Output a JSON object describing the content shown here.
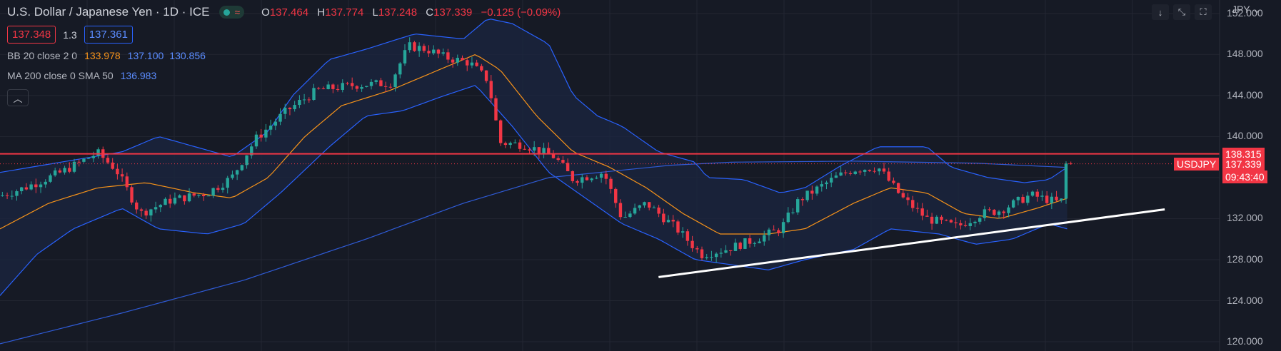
{
  "header": {
    "title": "U.S. Dollar / Japanese Yen · 1D · ICE",
    "ohlc": [
      {
        "k": "O",
        "v": "137.464"
      },
      {
        "k": "H",
        "v": "137.774"
      },
      {
        "k": "L",
        "v": "137.248"
      },
      {
        "k": "C",
        "v": "137.339"
      },
      {
        "k": "",
        "v": "−0.125 (−0.09%)"
      }
    ],
    "sell_price": "137.348",
    "spread": "1.3",
    "buy_price": "137.361",
    "currency": "JPY",
    "icons": [
      "arrow-down-icon",
      "collapse-arrows-icon",
      "fullscreen-icon"
    ]
  },
  "indicators": {
    "bb": {
      "name": "BB 20 close 2 0",
      "basis": "133.978",
      "upper": "137.100",
      "lower": "130.856"
    },
    "ma": {
      "name": "MA 200 close 0 SMA 50",
      "value": "136.983"
    }
  },
  "labels": {
    "resistance": "138.315",
    "symbol": "USDJPY",
    "last_price": "137.339",
    "countdown": "09:43:40"
  },
  "colors": {
    "bg": "#161a25",
    "grid": "#232632",
    "up": "#26a69a",
    "down": "#f23645",
    "bb_line": "#2962ff",
    "bb_fill": "#1b2540",
    "basis": "#f7931a",
    "ma": "#2f5bd6",
    "resistance": "#f23645",
    "trend": "#ffffff"
  },
  "chart_data": {
    "type": "candlestick",
    "y_ticks": [
      "152.000",
      "148.000",
      "144.000",
      "140.000",
      "136.000",
      "132.000",
      "128.000",
      "124.000",
      "120.000"
    ],
    "ylim": [
      119.1,
      153.3
    ],
    "resistance_level": 138.315,
    "last_price": 137.339,
    "trendline": {
      "from": [
        0.54,
        126.3
      ],
      "to": [
        0.955,
        132.9
      ]
    },
    "anchors": [
      [
        0,
        134.2
      ],
      [
        0.02,
        135.0
      ],
      [
        0.05,
        136.5
      ],
      [
        0.08,
        138.4
      ],
      [
        0.095,
        136.8
      ],
      [
        0.115,
        132.5
      ],
      [
        0.14,
        133.8
      ],
      [
        0.17,
        134.5
      ],
      [
        0.19,
        136.0
      ],
      [
        0.21,
        139.8
      ],
      [
        0.235,
        142.5
      ],
      [
        0.26,
        144.5
      ],
      [
        0.29,
        145.0
      ],
      [
        0.32,
        145.2
      ],
      [
        0.335,
        148.8
      ],
      [
        0.35,
        148.5
      ],
      [
        0.365,
        147.7
      ],
      [
        0.385,
        147.2
      ],
      [
        0.4,
        145.5
      ],
      [
        0.41,
        139.4
      ],
      [
        0.43,
        139.2
      ],
      [
        0.455,
        138.0
      ],
      [
        0.47,
        135.8
      ],
      [
        0.495,
        136.5
      ],
      [
        0.51,
        132.0
      ],
      [
        0.53,
        133.5
      ],
      [
        0.555,
        131.0
      ],
      [
        0.575,
        128.5
      ],
      [
        0.595,
        129.0
      ],
      [
        0.62,
        130.0
      ],
      [
        0.64,
        131.0
      ],
      [
        0.655,
        133.8
      ],
      [
        0.685,
        136.0
      ],
      [
        0.7,
        136.8
      ],
      [
        0.72,
        137.0
      ],
      [
        0.74,
        134.0
      ],
      [
        0.76,
        132.0
      ],
      [
        0.785,
        131.2
      ],
      [
        0.805,
        132.5
      ],
      [
        0.82,
        132.8
      ],
      [
        0.845,
        134.3
      ],
      [
        0.87,
        133.5
      ],
      [
        0.873,
        137.3
      ],
      [
        0.88,
        137.339
      ]
    ],
    "bb_upper_anchors": [
      [
        0,
        136.5
      ],
      [
        0.05,
        137.5
      ],
      [
        0.1,
        138.5
      ],
      [
        0.13,
        140.0
      ],
      [
        0.16,
        139.0
      ],
      [
        0.19,
        138.0
      ],
      [
        0.22,
        140.5
      ],
      [
        0.24,
        144.0
      ],
      [
        0.27,
        147.5
      ],
      [
        0.3,
        148.5
      ],
      [
        0.34,
        150.0
      ],
      [
        0.38,
        149.5
      ],
      [
        0.4,
        151.5
      ],
      [
        0.42,
        151.0
      ],
      [
        0.45,
        149.0
      ],
      [
        0.47,
        144.0
      ],
      [
        0.49,
        142.0
      ],
      [
        0.51,
        141.0
      ],
      [
        0.54,
        138.5
      ],
      [
        0.57,
        137.5
      ],
      [
        0.58,
        136.0
      ],
      [
        0.61,
        135.8
      ],
      [
        0.64,
        134.5
      ],
      [
        0.66,
        135.0
      ],
      [
        0.69,
        137.2
      ],
      [
        0.72,
        139.0
      ],
      [
        0.76,
        139.0
      ],
      [
        0.78,
        137.0
      ],
      [
        0.81,
        136.0
      ],
      [
        0.84,
        135.5
      ],
      [
        0.86,
        135.8
      ],
      [
        0.875,
        137.0
      ]
    ],
    "bb_lower_anchors": [
      [
        0,
        124.5
      ],
      [
        0.03,
        128.5
      ],
      [
        0.06,
        131.0
      ],
      [
        0.1,
        133.0
      ],
      [
        0.13,
        131.0
      ],
      [
        0.17,
        130.5
      ],
      [
        0.2,
        131.5
      ],
      [
        0.23,
        134.5
      ],
      [
        0.27,
        139.0
      ],
      [
        0.3,
        142.0
      ],
      [
        0.33,
        142.5
      ],
      [
        0.36,
        143.8
      ],
      [
        0.39,
        145.0
      ],
      [
        0.42,
        141.0
      ],
      [
        0.45,
        136.5
      ],
      [
        0.48,
        134.0
      ],
      [
        0.51,
        131.5
      ],
      [
        0.54,
        130.0
      ],
      [
        0.57,
        128.0
      ],
      [
        0.6,
        127.5
      ],
      [
        0.63,
        127.0
      ],
      [
        0.66,
        128.0
      ],
      [
        0.7,
        129.0
      ],
      [
        0.73,
        131.0
      ],
      [
        0.77,
        130.5
      ],
      [
        0.8,
        129.5
      ],
      [
        0.83,
        130.0
      ],
      [
        0.86,
        131.5
      ],
      [
        0.875,
        131.0
      ]
    ],
    "basis_anchors": [
      [
        0,
        131.0
      ],
      [
        0.04,
        133.5
      ],
      [
        0.08,
        135.0
      ],
      [
        0.12,
        135.5
      ],
      [
        0.16,
        134.5
      ],
      [
        0.19,
        134.0
      ],
      [
        0.22,
        136.0
      ],
      [
        0.25,
        140.0
      ],
      [
        0.28,
        143.0
      ],
      [
        0.32,
        144.5
      ],
      [
        0.36,
        146.5
      ],
      [
        0.39,
        148.0
      ],
      [
        0.41,
        146.5
      ],
      [
        0.44,
        142.0
      ],
      [
        0.47,
        138.5
      ],
      [
        0.5,
        137.0
      ],
      [
        0.53,
        135.0
      ],
      [
        0.56,
        132.5
      ],
      [
        0.59,
        130.5
      ],
      [
        0.63,
        130.5
      ],
      [
        0.66,
        131.0
      ],
      [
        0.7,
        133.5
      ],
      [
        0.73,
        135.0
      ],
      [
        0.76,
        134.5
      ],
      [
        0.79,
        132.5
      ],
      [
        0.82,
        132.0
      ],
      [
        0.85,
        133.0
      ],
      [
        0.875,
        133.978
      ]
    ],
    "ma_anchors": [
      [
        0,
        119.8
      ],
      [
        0.1,
        122.8
      ],
      [
        0.2,
        126.0
      ],
      [
        0.3,
        130.0
      ],
      [
        0.38,
        133.5
      ],
      [
        0.45,
        136.0
      ],
      [
        0.5,
        136.6
      ],
      [
        0.55,
        137.2
      ],
      [
        0.6,
        137.5
      ],
      [
        0.7,
        137.6
      ],
      [
        0.8,
        137.4
      ],
      [
        0.875,
        136.983
      ]
    ]
  }
}
